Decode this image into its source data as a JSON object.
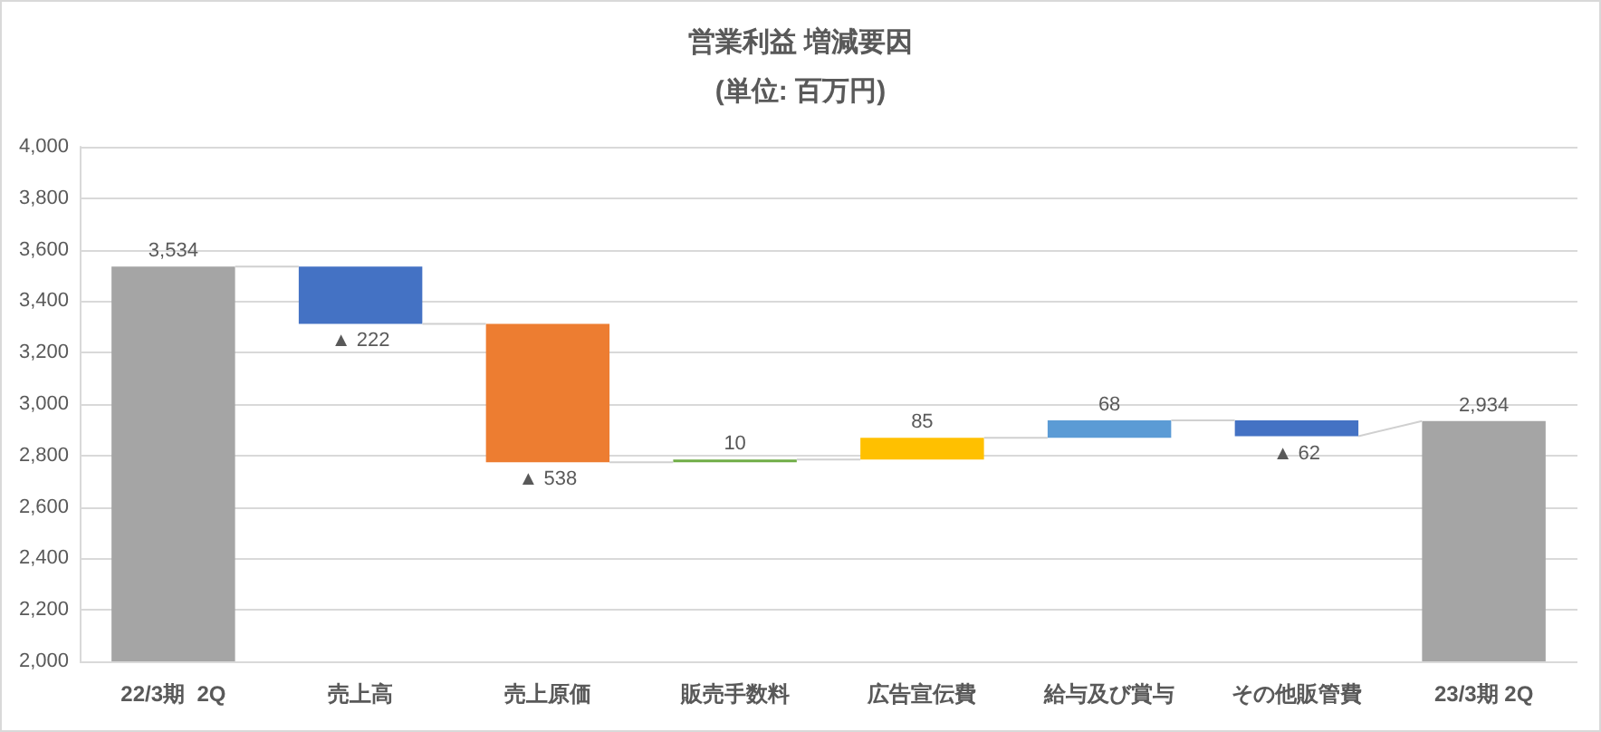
{
  "chart_data": {
    "type": "bar",
    "title": "営業利益 増減要因",
    "subtitle": "(単位: 百万円)",
    "categories": [
      "22/3期  2Q",
      "売上高",
      "売上原価",
      "販売手数料",
      "広告宣伝費",
      "給与及び賞与",
      "その他販管費",
      "23/3期 2Q"
    ],
    "values": [
      3534,
      -222,
      -538,
      10,
      85,
      68,
      -62,
      2934
    ],
    "base": [
      null,
      3534,
      3312,
      2774,
      2784,
      2869,
      2937,
      null
    ],
    "colors": [
      "#a5a5a5",
      "#4472c4",
      "#ed7d31",
      "#70ad47",
      "#ffc000",
      "#5b9bd5",
      "#4472c4",
      "#a5a5a5"
    ],
    "value_labels": [
      "3,534",
      "▲ 222",
      "▲ 538",
      "10",
      "85",
      "68",
      "▲ 62",
      "2,934"
    ],
    "ylim": [
      2000,
      4000
    ],
    "yticks": [
      {
        "value": 2000,
        "label": "2,000"
      },
      {
        "value": 2200,
        "label": "2,200"
      },
      {
        "value": 2400,
        "label": "2,400"
      },
      {
        "value": 2600,
        "label": "2,600"
      },
      {
        "value": 2800,
        "label": "2,800"
      },
      {
        "value": 3000,
        "label": "3,000"
      },
      {
        "value": 3200,
        "label": "3,200"
      },
      {
        "value": 3400,
        "label": "3,400"
      },
      {
        "value": 3600,
        "label": "3,600"
      },
      {
        "value": 3800,
        "label": "3,800"
      },
      {
        "value": 4000,
        "label": "4,000"
      }
    ],
    "grid": "y"
  }
}
